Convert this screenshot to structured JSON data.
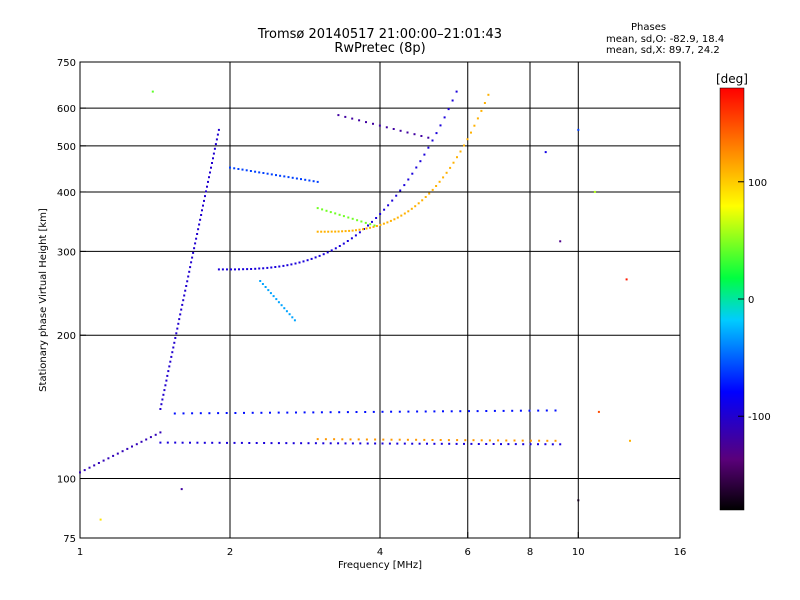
{
  "header": {
    "title": "Tromsø 20140517 21:00:00–21:01:43",
    "subtitle": "RwPretec (8p)"
  },
  "phase_stats": {
    "title": "Phases",
    "o_line": "mean, sd,O: -82.9, 18.4",
    "x_line": "mean, sd,X: 89.7, 24.2"
  },
  "colorbar": {
    "label": "[deg]",
    "ticks": [
      {
        "value": 100,
        "text": "100"
      },
      {
        "value": 0,
        "text": "0"
      },
      {
        "value": -100,
        "text": "-100"
      }
    ],
    "range": [
      -180,
      180
    ]
  },
  "chart_data": {
    "type": "scatter",
    "title": "Tromsø 20140517 21:00:00–21:01:43",
    "subtitle": "RwPretec (8p)",
    "xlabel": "Frequency [MHz]",
    "ylabel": "Stationary phase Virtual Height [km]",
    "xscale": "log",
    "yscale": "log",
    "xlim": [
      1,
      16
    ],
    "ylim": [
      75,
      750
    ],
    "xticks": [
      {
        "value": 1,
        "text": "1"
      },
      {
        "value": 2,
        "text": "2"
      },
      {
        "value": 4,
        "text": "4"
      },
      {
        "value": 6,
        "text": "6"
      },
      {
        "value": 8,
        "text": "8"
      },
      {
        "value": 10,
        "text": "10"
      },
      {
        "value": 16,
        "text": "16"
      }
    ],
    "yticks": [
      {
        "value": 75,
        "text": "75"
      },
      {
        "value": 100,
        "text": "100"
      },
      {
        "value": 200,
        "text": "200"
      },
      {
        "value": 300,
        "text": "300"
      },
      {
        "value": 400,
        "text": "400"
      },
      {
        "value": 500,
        "text": "500"
      },
      {
        "value": 600,
        "text": "600"
      },
      {
        "value": 750,
        "text": "750"
      }
    ],
    "grid": true,
    "color_encoding": "phase [deg]",
    "segments": [
      {
        "name": "E-layer trace",
        "x0": 1.45,
        "x1": 9.2,
        "y0": 119,
        "y1": 118,
        "n": 55,
        "phase": -95
      },
      {
        "name": "Es weak trace",
        "x0": 1.55,
        "x1": 9.0,
        "y0": 137,
        "y1": 139,
        "n": 45,
        "phase": -75
      },
      {
        "name": "low-frequency spread",
        "x0": 1.0,
        "x1": 1.45,
        "y0": 103,
        "y1": 125,
        "n": 18,
        "phase": -110
      },
      {
        "name": "F-layer spread column",
        "x0": 1.45,
        "x1": 1.9,
        "y0": 140,
        "y1": 540,
        "n": 60,
        "phase": -100
      },
      {
        "name": "O-mode F trace",
        "x0": 1.9,
        "x1": 5.7,
        "y0": 275,
        "y1": 650,
        "n": 60,
        "phase": -95,
        "curve": "rising"
      },
      {
        "name": "X-mode F trace",
        "x0": 3.0,
        "x1": 6.6,
        "y0": 330,
        "y1": 640,
        "n": 50,
        "phase": 110,
        "curve": "rising"
      },
      {
        "name": "oblique echo",
        "x0": 2.0,
        "x1": 3.0,
        "y0": 450,
        "y1": 420,
        "n": 22,
        "phase": -60
      },
      {
        "name": "descending trace",
        "x0": 2.3,
        "x1": 2.7,
        "y0": 260,
        "y1": 215,
        "n": 14,
        "phase": -30
      },
      {
        "name": "upper echo",
        "x0": 3.3,
        "x1": 5.0,
        "y0": 580,
        "y1": 520,
        "n": 14,
        "phase": -120
      },
      {
        "name": "green patch",
        "x0": 3.0,
        "x1": 3.9,
        "y0": 370,
        "y1": 340,
        "n": 14,
        "phase": 45
      },
      {
        "name": "X E-layer",
        "x0": 3.0,
        "x1": 9.0,
        "y0": 121,
        "y1": 120,
        "n": 30,
        "phase": 120
      }
    ],
    "points": [
      {
        "x": 10.0,
        "y": 540,
        "phase": -60
      },
      {
        "x": 10.8,
        "y": 400,
        "phase": 60
      },
      {
        "x": 11.0,
        "y": 138,
        "phase": 150
      },
      {
        "x": 12.7,
        "y": 120,
        "phase": 110
      },
      {
        "x": 12.5,
        "y": 262,
        "phase": 170
      },
      {
        "x": 8.6,
        "y": 485,
        "phase": -90
      },
      {
        "x": 9.2,
        "y": 315,
        "phase": -130
      },
      {
        "x": 1.4,
        "y": 650,
        "phase": 40
      },
      {
        "x": 1.1,
        "y": 82,
        "phase": 90
      },
      {
        "x": 1.6,
        "y": 95,
        "phase": -120
      },
      {
        "x": 10.0,
        "y": 90,
        "phase": -170
      }
    ]
  }
}
